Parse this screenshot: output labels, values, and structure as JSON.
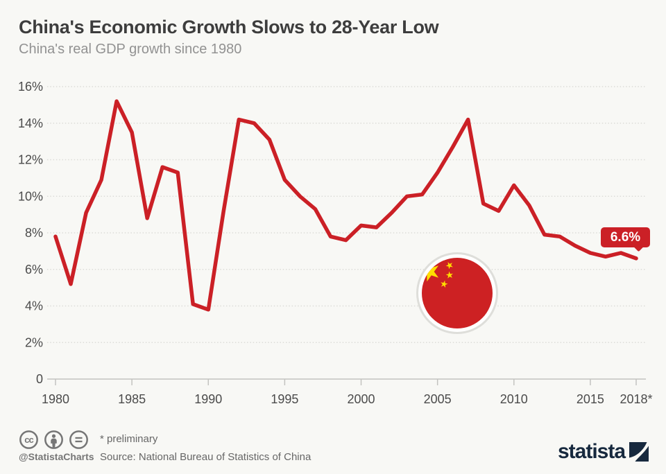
{
  "header": {
    "title": "China's Economic Growth Slows to 28-Year Low",
    "subtitle": "China's real GDP growth since 1980"
  },
  "chart_data": {
    "type": "line",
    "title": "China's Economic Growth Slows to 28-Year Low",
    "subtitle": "China's real GDP growth since 1980",
    "x": [
      1980,
      1981,
      1982,
      1983,
      1984,
      1985,
      1986,
      1987,
      1988,
      1989,
      1990,
      1991,
      1992,
      1993,
      1994,
      1995,
      1996,
      1997,
      1998,
      1999,
      2000,
      2001,
      2002,
      2003,
      2004,
      2005,
      2006,
      2007,
      2008,
      2009,
      2010,
      2011,
      2012,
      2013,
      2014,
      2015,
      2016,
      2017,
      2018
    ],
    "values": [
      7.8,
      5.2,
      9.1,
      10.9,
      15.2,
      13.5,
      8.8,
      11.6,
      11.3,
      4.1,
      3.8,
      9.2,
      14.2,
      14.0,
      13.1,
      10.9,
      10.0,
      9.3,
      7.8,
      7.6,
      8.4,
      8.3,
      9.1,
      10.0,
      10.1,
      11.3,
      12.7,
      14.2,
      9.6,
      9.2,
      10.6,
      9.5,
      7.9,
      7.8,
      7.3,
      6.9,
      6.7,
      6.9,
      6.6
    ],
    "ylim": [
      0,
      16
    ],
    "y_ticks": [
      {
        "v": 0,
        "label": "0"
      },
      {
        "v": 2,
        "label": "2%"
      },
      {
        "v": 4,
        "label": "4%"
      },
      {
        "v": 6,
        "label": "6%"
      },
      {
        "v": 8,
        "label": "8%"
      },
      {
        "v": 10,
        "label": "10%"
      },
      {
        "v": 12,
        "label": "12%"
      },
      {
        "v": 14,
        "label": "14%"
      },
      {
        "v": 16,
        "label": "16%"
      }
    ],
    "x_ticks": [
      {
        "v": 1980,
        "label": "1980"
      },
      {
        "v": 1985,
        "label": "1985"
      },
      {
        "v": 1990,
        "label": "1990"
      },
      {
        "v": 1995,
        "label": "1995"
      },
      {
        "v": 2000,
        "label": "2000"
      },
      {
        "v": 2005,
        "label": "2005"
      },
      {
        "v": 2010,
        "label": "2010"
      },
      {
        "v": 2015,
        "label": "2015"
      },
      {
        "v": 2018,
        "label": "2018*"
      }
    ],
    "grid": "horizontal-dotted",
    "legend": "none",
    "line_color": "#cb2026",
    "last_value_label": "6.6%"
  },
  "decoration": {
    "flag": "china-flag-medallion",
    "flag_red": "#cd2123",
    "flag_star_yellow": "#ffde00"
  },
  "footer": {
    "handle": "@StatistaCharts",
    "preliminary_note": "* preliminary",
    "source": "Source: National Bureau of Statistics of China",
    "brand": "statista",
    "brand_color": "#17293e",
    "license_icons": [
      "cc",
      "attribution",
      "nd"
    ]
  },
  "colors": {
    "background": "#f8f8f5",
    "title_text": "#3d3d3d",
    "subtitle_text": "#929292",
    "axis_text": "#4b4b4b"
  }
}
